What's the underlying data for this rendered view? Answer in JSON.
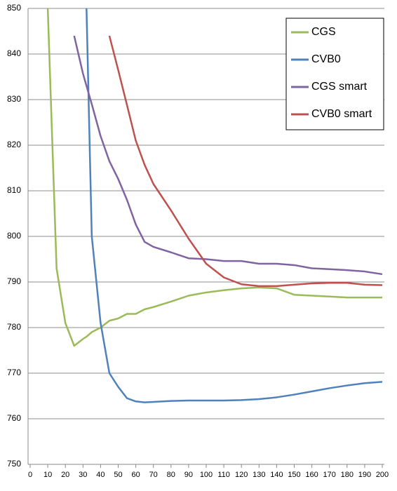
{
  "chart_data": {
    "type": "line",
    "x": [
      10,
      15,
      20,
      25,
      30,
      32,
      35,
      40,
      45,
      50,
      55,
      60,
      65,
      70,
      80,
      90,
      100,
      110,
      120,
      130,
      140,
      150,
      160,
      170,
      180,
      190,
      200
    ],
    "series": [
      {
        "name": "CGS",
        "color": "#9bbb59",
        "values": [
          850,
          793,
          781,
          776,
          777.5,
          778,
          779,
          780,
          781.5,
          782,
          783,
          783,
          784,
          784.5,
          785.7,
          787,
          787.7,
          788.2,
          788.6,
          788.8,
          788.6,
          787.2,
          787,
          786.8,
          786.6,
          786.6,
          786.6
        ]
      },
      {
        "name": "CVB0",
        "color": "#4f81bd",
        "values": [
          null,
          null,
          null,
          null,
          null,
          850,
          800,
          781,
          770,
          767,
          764.5,
          763.8,
          763.6,
          763.7,
          763.9,
          764,
          764,
          764,
          764.1,
          764.3,
          764.7,
          765.3,
          766,
          766.7,
          767.3,
          767.8,
          768.1
        ]
      },
      {
        "name": "CGS smart",
        "color": "#8064a2",
        "values": [
          null,
          null,
          null,
          844,
          835.7,
          833,
          829,
          822,
          816.5,
          812.6,
          808,
          802.6,
          798.8,
          797.7,
          796.5,
          795.2,
          795,
          794.6,
          794.6,
          794,
          794,
          793.7,
          793,
          792.8,
          792.6,
          792.3,
          791.7
        ]
      },
      {
        "name": "CVB0 smart",
        "color": "#c0504d",
        "values": [
          null,
          null,
          null,
          null,
          null,
          null,
          null,
          null,
          844,
          836.5,
          828.8,
          821,
          815.7,
          811.5,
          805.7,
          799.5,
          794,
          791,
          789.5,
          789.1,
          789.1,
          789.4,
          789.7,
          789.8,
          789.8,
          789.4,
          789.3
        ]
      }
    ],
    "xlim": [
      0,
      200
    ],
    "xticks": [
      0,
      10,
      20,
      30,
      40,
      50,
      60,
      70,
      80,
      90,
      100,
      110,
      120,
      130,
      140,
      150,
      160,
      170,
      180,
      190,
      200
    ],
    "ylim": [
      750,
      850
    ],
    "yticks": [
      750,
      760,
      770,
      780,
      790,
      800,
      810,
      820,
      830,
      840,
      850
    ],
    "grid": true,
    "legend": "top-right"
  }
}
